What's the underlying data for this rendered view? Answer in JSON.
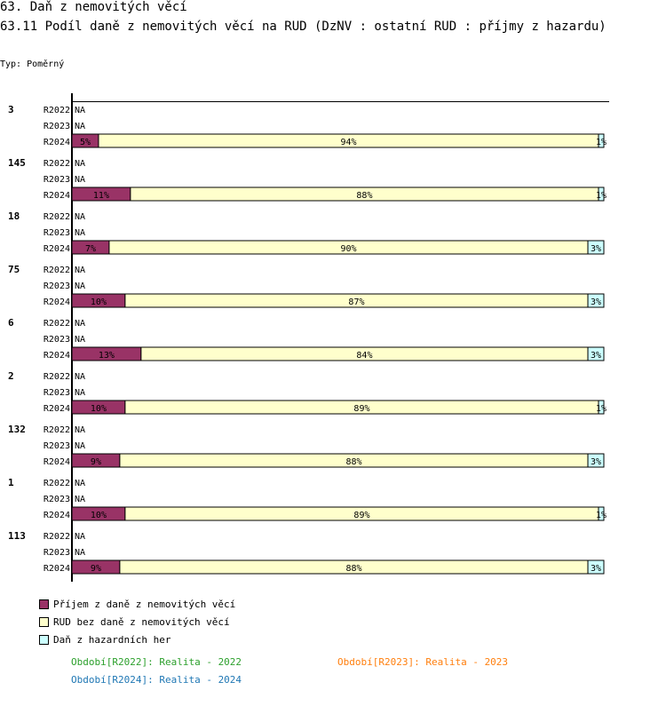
{
  "title": "63. Daň z nemovitých věcí",
  "subtitle": "63.11 Podíl daně z nemovitých věcí na RUD (DzNV : ostatní RUD : příjmy z hazardu)",
  "type_label": "Typ: Poměrný",
  "colors": {
    "s1": "#993366",
    "s2": "#ffffcc",
    "s3": "#ccffff"
  },
  "chart_data": {
    "type": "bar",
    "orientation": "horizontal",
    "stacked": "percent",
    "periods": [
      "R2022",
      "R2023",
      "R2024"
    ],
    "series": [
      "Příjem z daně z nemovitých věcí",
      "RUD bez daně z nemovitých věcí",
      "Daň z hazardních her"
    ],
    "na_label": "NA",
    "groups": [
      {
        "label": "3",
        "R2024": [
          5,
          94,
          1
        ]
      },
      {
        "label": "145",
        "R2024": [
          11,
          88,
          1
        ]
      },
      {
        "label": "18",
        "R2024": [
          7,
          90,
          3
        ]
      },
      {
        "label": "75",
        "R2024": [
          10,
          87,
          3
        ]
      },
      {
        "label": "6",
        "R2024": [
          13,
          84,
          3
        ]
      },
      {
        "label": "2",
        "R2024": [
          10,
          89,
          1
        ]
      },
      {
        "label": "132",
        "R2024": [
          9,
          88,
          3
        ]
      },
      {
        "label": "1",
        "R2024": [
          10,
          89,
          1
        ]
      },
      {
        "label": "113",
        "R2024": [
          9,
          88,
          3
        ]
      }
    ]
  },
  "periods_legend": [
    {
      "text": "Období[R2022]: Realita - 2022",
      "color": "#2ca02c"
    },
    {
      "text": "Období[R2023]: Realita - 2023",
      "color": "#ff7f0e"
    },
    {
      "text": "Období[R2024]: Realita - 2024",
      "color": "#1f77b4"
    }
  ]
}
